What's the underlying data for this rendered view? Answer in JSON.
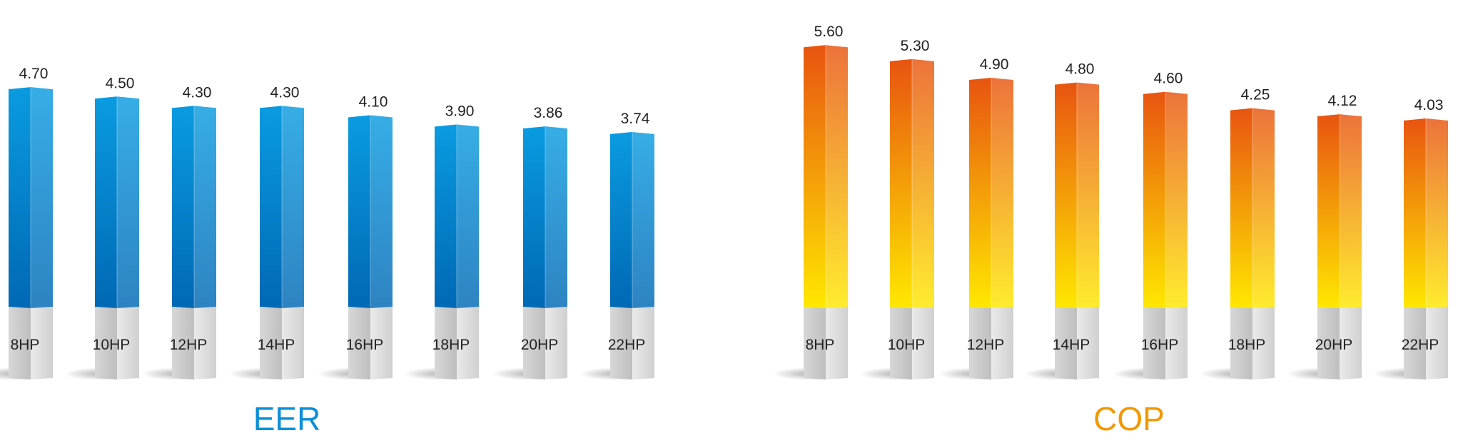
{
  "chart_data": [
    {
      "type": "bar",
      "title": "EER",
      "categories": [
        "8HP",
        "10HP",
        "12HP",
        "14HP",
        "16HP",
        "18HP",
        "20HP",
        "22HP"
      ],
      "values": [
        4.7,
        4.5,
        4.3,
        4.3,
        4.1,
        3.9,
        3.86,
        3.74
      ],
      "value_labels": [
        "4.70",
        "4.50",
        "4.30",
        "4.30",
        "4.10",
        "3.90",
        "3.86",
        "3.74"
      ],
      "colors": {
        "top": "#0a9be0",
        "bottom": "#0068b5",
        "title": "#0a8fd8"
      }
    },
    {
      "type": "bar",
      "title": "COP",
      "categories": [
        "8HP",
        "10HP",
        "12HP",
        "14HP",
        "16HP",
        "18HP",
        "20HP",
        "22HP"
      ],
      "values": [
        5.6,
        5.3,
        4.9,
        4.8,
        4.6,
        4.25,
        4.12,
        4.03
      ],
      "value_labels": [
        "5.60",
        "5.30",
        "4.90",
        "4.80",
        "4.60",
        "4.25",
        "4.12",
        "4.03"
      ],
      "colors": {
        "top": "#e85410",
        "bottom": "#ffe800",
        "title": "#f39800"
      }
    }
  ]
}
